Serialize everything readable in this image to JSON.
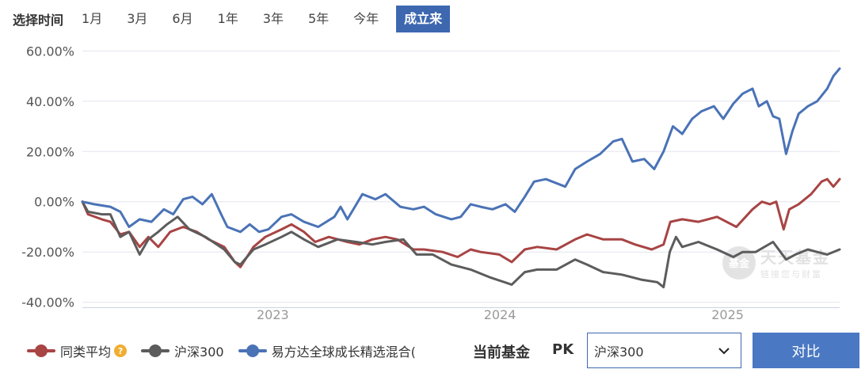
{
  "range_selector": {
    "label": "选择时间",
    "options": [
      "1月",
      "3月",
      "6月",
      "1年",
      "3年",
      "5年",
      "今年",
      "成立来"
    ],
    "active": "成立来"
  },
  "chart_data": {
    "type": "line",
    "y_ticks": [
      "60.00%",
      "40.00%",
      "20.00%",
      "0.00%",
      "-20.00%",
      "-40.00%"
    ],
    "ylim": [
      -42,
      62
    ],
    "xlim": [
      "2022-03-01",
      "2025-06-30"
    ],
    "x_ticks": [
      {
        "label": "2023",
        "date": "2023-01-01"
      },
      {
        "label": "2024",
        "date": "2024-01-01"
      },
      {
        "label": "2025",
        "date": "2025-01-01"
      }
    ],
    "series": [
      {
        "name": "同类平均",
        "color": "#a84444",
        "points": [
          [
            "2022-03-01",
            0
          ],
          [
            "2022-03-10",
            -5
          ],
          [
            "2022-04-01",
            -7
          ],
          [
            "2022-04-15",
            -8
          ],
          [
            "2022-05-01",
            -13
          ],
          [
            "2022-05-15",
            -12
          ],
          [
            "2022-06-01",
            -18
          ],
          [
            "2022-06-15",
            -14
          ],
          [
            "2022-07-01",
            -18
          ],
          [
            "2022-07-20",
            -12
          ],
          [
            "2022-08-10",
            -10
          ],
          [
            "2022-09-01",
            -12
          ],
          [
            "2022-09-20",
            -15
          ],
          [
            "2022-10-15",
            -18
          ],
          [
            "2022-11-01",
            -24
          ],
          [
            "2022-11-10",
            -26
          ],
          [
            "2022-12-01",
            -18
          ],
          [
            "2022-12-20",
            -14
          ],
          [
            "2023-01-15",
            -11
          ],
          [
            "2023-01-31",
            -9
          ],
          [
            "2023-02-20",
            -12
          ],
          [
            "2023-03-10",
            -16
          ],
          [
            "2023-04-01",
            -14
          ],
          [
            "2023-05-01",
            -16
          ],
          [
            "2023-05-20",
            -17
          ],
          [
            "2023-06-10",
            -15
          ],
          [
            "2023-07-01",
            -14
          ],
          [
            "2023-07-20",
            -15
          ],
          [
            "2023-08-15",
            -19
          ],
          [
            "2023-09-01",
            -19
          ],
          [
            "2023-10-01",
            -20
          ],
          [
            "2023-10-25",
            -22
          ],
          [
            "2023-11-15",
            -19
          ],
          [
            "2023-12-01",
            -20
          ],
          [
            "2023-12-31",
            -21
          ],
          [
            "2024-01-20",
            -24
          ],
          [
            "2024-02-10",
            -19
          ],
          [
            "2024-03-01",
            -18
          ],
          [
            "2024-04-01",
            -19
          ],
          [
            "2024-05-01",
            -15
          ],
          [
            "2024-05-20",
            -13
          ],
          [
            "2024-06-15",
            -15
          ],
          [
            "2024-07-15",
            -15
          ],
          [
            "2024-08-05",
            -17
          ],
          [
            "2024-09-01",
            -19
          ],
          [
            "2024-09-20",
            -17
          ],
          [
            "2024-10-01",
            -8
          ],
          [
            "2024-10-20",
            -7
          ],
          [
            "2024-11-15",
            -8
          ],
          [
            "2024-12-15",
            -6
          ],
          [
            "2025-01-15",
            -10
          ],
          [
            "2025-02-10",
            -3
          ],
          [
            "2025-02-25",
            0
          ],
          [
            "2025-03-10",
            -1
          ],
          [
            "2025-03-20",
            0
          ],
          [
            "2025-04-01",
            -11
          ],
          [
            "2025-04-10",
            -3
          ],
          [
            "2025-04-25",
            -1
          ],
          [
            "2025-05-15",
            3
          ],
          [
            "2025-06-01",
            8
          ],
          [
            "2025-06-10",
            9
          ],
          [
            "2025-06-20",
            6
          ],
          [
            "2025-06-30",
            9
          ]
        ]
      },
      {
        "name": "沪深300",
        "color": "#5c5c5c",
        "points": [
          [
            "2022-03-01",
            0
          ],
          [
            "2022-03-10",
            -4
          ],
          [
            "2022-04-01",
            -5
          ],
          [
            "2022-04-15",
            -5
          ],
          [
            "2022-05-01",
            -14
          ],
          [
            "2022-05-15",
            -12
          ],
          [
            "2022-06-01",
            -21
          ],
          [
            "2022-06-15",
            -15
          ],
          [
            "2022-07-01",
            -12
          ],
          [
            "2022-07-15",
            -9
          ],
          [
            "2022-08-01",
            -6
          ],
          [
            "2022-08-20",
            -11
          ],
          [
            "2022-09-15",
            -14
          ],
          [
            "2022-10-15",
            -19
          ],
          [
            "2022-11-01",
            -24
          ],
          [
            "2022-11-10",
            -25
          ],
          [
            "2022-12-01",
            -19
          ],
          [
            "2022-12-20",
            -17
          ],
          [
            "2023-01-15",
            -14
          ],
          [
            "2023-01-31",
            -12
          ],
          [
            "2023-02-20",
            -15
          ],
          [
            "2023-03-15",
            -18
          ],
          [
            "2023-04-15",
            -15
          ],
          [
            "2023-05-15",
            -16
          ],
          [
            "2023-06-10",
            -17
          ],
          [
            "2023-07-01",
            -16
          ],
          [
            "2023-07-30",
            -15
          ],
          [
            "2023-08-20",
            -21
          ],
          [
            "2023-09-15",
            -21
          ],
          [
            "2023-10-15",
            -25
          ],
          [
            "2023-11-15",
            -27
          ],
          [
            "2023-12-15",
            -30
          ],
          [
            "2024-01-20",
            -33
          ],
          [
            "2024-02-10",
            -28
          ],
          [
            "2024-03-01",
            -27
          ],
          [
            "2024-04-01",
            -27
          ],
          [
            "2024-05-01",
            -23
          ],
          [
            "2024-05-20",
            -25
          ],
          [
            "2024-06-15",
            -28
          ],
          [
            "2024-07-15",
            -29
          ],
          [
            "2024-08-15",
            -31
          ],
          [
            "2024-09-10",
            -32
          ],
          [
            "2024-09-20",
            -34
          ],
          [
            "2024-09-30",
            -20
          ],
          [
            "2024-10-10",
            -14
          ],
          [
            "2024-10-20",
            -18
          ],
          [
            "2024-11-15",
            -16
          ],
          [
            "2024-12-15",
            -19
          ],
          [
            "2025-01-10",
            -22
          ],
          [
            "2025-01-25",
            -20
          ],
          [
            "2025-02-15",
            -20
          ],
          [
            "2025-03-15",
            -16
          ],
          [
            "2025-04-05",
            -23
          ],
          [
            "2025-04-20",
            -21
          ],
          [
            "2025-05-10",
            -19
          ],
          [
            "2025-05-25",
            -20
          ],
          [
            "2025-06-10",
            -21
          ],
          [
            "2025-06-30",
            -19
          ]
        ]
      },
      {
        "name": "易方达全球成长精选混合(",
        "color": "#4a73b6",
        "points": [
          [
            "2022-03-01",
            0
          ],
          [
            "2022-03-20",
            -1
          ],
          [
            "2022-04-15",
            -2
          ],
          [
            "2022-05-01",
            -4
          ],
          [
            "2022-05-15",
            -10
          ],
          [
            "2022-06-01",
            -7
          ],
          [
            "2022-06-20",
            -8
          ],
          [
            "2022-07-10",
            -3
          ],
          [
            "2022-07-25",
            -5
          ],
          [
            "2022-08-10",
            1
          ],
          [
            "2022-08-25",
            2
          ],
          [
            "2022-09-10",
            -1
          ],
          [
            "2022-09-25",
            3
          ],
          [
            "2022-10-10",
            -5
          ],
          [
            "2022-10-20",
            -10
          ],
          [
            "2022-11-10",
            -12
          ],
          [
            "2022-11-25",
            -9
          ],
          [
            "2022-12-10",
            -12
          ],
          [
            "2022-12-25",
            -11
          ],
          [
            "2023-01-15",
            -6
          ],
          [
            "2023-01-31",
            -5
          ],
          [
            "2023-02-20",
            -8
          ],
          [
            "2023-03-15",
            -10
          ],
          [
            "2023-04-10",
            -6
          ],
          [
            "2023-04-20",
            -2
          ],
          [
            "2023-05-01",
            -7
          ],
          [
            "2023-05-25",
            3
          ],
          [
            "2023-06-15",
            1
          ],
          [
            "2023-07-01",
            3
          ],
          [
            "2023-07-25",
            -2
          ],
          [
            "2023-08-15",
            -3
          ],
          [
            "2023-09-01",
            -2
          ],
          [
            "2023-09-20",
            -5
          ],
          [
            "2023-10-15",
            -7
          ],
          [
            "2023-10-30",
            -6
          ],
          [
            "2023-11-15",
            -1
          ],
          [
            "2023-12-01",
            -2
          ],
          [
            "2023-12-20",
            -3
          ],
          [
            "2024-01-10",
            -1
          ],
          [
            "2024-01-25",
            -4
          ],
          [
            "2024-02-10",
            2
          ],
          [
            "2024-02-25",
            8
          ],
          [
            "2024-03-15",
            9
          ],
          [
            "2024-04-15",
            6
          ],
          [
            "2024-05-01",
            13
          ],
          [
            "2024-05-20",
            16
          ],
          [
            "2024-06-10",
            19
          ],
          [
            "2024-07-01",
            24
          ],
          [
            "2024-07-15",
            25
          ],
          [
            "2024-08-01",
            16
          ],
          [
            "2024-08-20",
            17
          ],
          [
            "2024-09-05",
            13
          ],
          [
            "2024-09-20",
            20
          ],
          [
            "2024-10-05",
            30
          ],
          [
            "2024-10-20",
            27
          ],
          [
            "2024-11-05",
            33
          ],
          [
            "2024-11-20",
            36
          ],
          [
            "2024-12-10",
            38
          ],
          [
            "2024-12-25",
            33
          ],
          [
            "2025-01-10",
            39
          ],
          [
            "2025-01-25",
            43
          ],
          [
            "2025-02-10",
            45
          ],
          [
            "2025-02-20",
            38
          ],
          [
            "2025-03-05",
            40
          ],
          [
            "2025-03-15",
            34
          ],
          [
            "2025-03-25",
            33
          ],
          [
            "2025-04-05",
            19
          ],
          [
            "2025-04-15",
            28
          ],
          [
            "2025-04-25",
            35
          ],
          [
            "2025-05-10",
            38
          ],
          [
            "2025-05-25",
            40
          ],
          [
            "2025-06-10",
            45
          ],
          [
            "2025-06-20",
            50
          ],
          [
            "2025-06-30",
            53
          ]
        ]
      }
    ]
  },
  "legend": [
    {
      "label": "同类平均",
      "color": "#a84444",
      "help_icon": "question-icon"
    },
    {
      "label": "沪深300",
      "color": "#5c5c5c"
    },
    {
      "label": "易方达全球成长精选混合(",
      "color": "#4a73b6"
    }
  ],
  "pk": {
    "current_label": "当前基金",
    "pk_label": "PK",
    "select_value": "沪深300",
    "button_label": "对比"
  },
  "watermark": {
    "circle_text": "基金",
    "title": "天天基金",
    "subtitle": "链接您与财富"
  }
}
